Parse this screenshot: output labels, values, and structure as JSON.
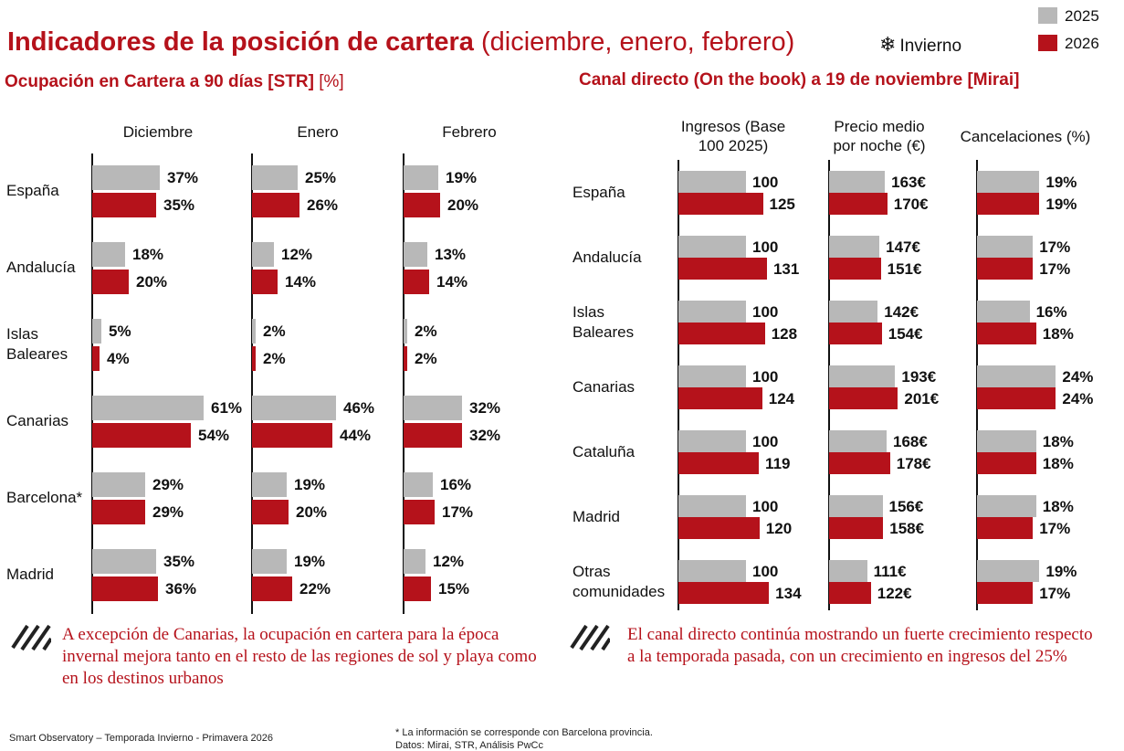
{
  "header": {
    "title_main": "Indicadores de la posición de cartera",
    "title_sub": "(diciembre, enero, febrero)",
    "season_label": "Invierno",
    "legend": [
      {
        "label": "2025",
        "color": "#b8b8b8"
      },
      {
        "label": "2026",
        "color": "#b5121b"
      }
    ]
  },
  "left": {
    "title": "Ocupación en Cartera a 90 días [STR]",
    "unit": "[%]",
    "months": [
      "Diciembre",
      "Enero",
      "Febrero"
    ],
    "rows": [
      {
        "label_lines": [
          "España"
        ]
      },
      {
        "label_lines": [
          "Andalucía"
        ]
      },
      {
        "label_lines": [
          "Islas",
          "Baleares"
        ]
      },
      {
        "label_lines": [
          "Canarias"
        ]
      },
      {
        "label_lines": [
          "Barcelona*"
        ]
      },
      {
        "label_lines": [
          "Madrid"
        ]
      }
    ],
    "note": "A excepción de Canarias, la ocupación en cartera para la época invernal mejora tanto en el resto de las regiones de sol y playa como en los destinos urbanos"
  },
  "right": {
    "title": "Canal directo (On the book) a 19 de noviembre [Mirai]",
    "columns": [
      {
        "header_lines": [
          "Ingresos (Base",
          "100 2025)"
        ]
      },
      {
        "header_lines": [
          "Precio medio",
          "por noche (€)"
        ]
      },
      {
        "header_lines": [
          "Cancelaciones (%)"
        ]
      }
    ],
    "rows": [
      {
        "label_lines": [
          "España"
        ]
      },
      {
        "label_lines": [
          "Andalucía"
        ]
      },
      {
        "label_lines": [
          "Islas",
          "Baleares"
        ]
      },
      {
        "label_lines": [
          "Canarias"
        ]
      },
      {
        "label_lines": [
          "Cataluña"
        ]
      },
      {
        "label_lines": [
          "Madrid"
        ]
      },
      {
        "label_lines": [
          "Otras",
          "comunidades"
        ]
      }
    ],
    "note": "El canal directo continúa mostrando un fuerte crecimiento respecto a la temporada pasada, con un crecimiento en ingresos del 25%"
  },
  "footer": {
    "left": "Smart Observatory – Temporada Invierno - Primavera 2026",
    "note_line1": "* La información se corresponde con Barcelona provincia.",
    "note_line2": "Datos: Mirai, STR, Análisis PwCc"
  },
  "chart_data": [
    {
      "type": "bar",
      "orientation": "horizontal",
      "title": "Ocupación en Cartera a 90 días [STR] [%] — Diciembre",
      "categories": [
        "España",
        "Andalucía",
        "Islas Baleares",
        "Canarias",
        "Barcelona*",
        "Madrid"
      ],
      "series": [
        {
          "name": "2025",
          "values": [
            37,
            18,
            5,
            61,
            29,
            35
          ],
          "labels": [
            "37%",
            "18%",
            "5%",
            "61%",
            "29%",
            "35%"
          ]
        },
        {
          "name": "2026",
          "values": [
            35,
            20,
            4,
            54,
            29,
            36
          ],
          "labels": [
            "35%",
            "20%",
            "4%",
            "54%",
            "29%",
            "36%"
          ]
        }
      ],
      "xlim": [
        0,
        100
      ]
    },
    {
      "type": "bar",
      "orientation": "horizontal",
      "title": "Ocupación en Cartera a 90 días [STR] [%] — Enero",
      "categories": [
        "España",
        "Andalucía",
        "Islas Baleares",
        "Canarias",
        "Barcelona*",
        "Madrid"
      ],
      "series": [
        {
          "name": "2025",
          "values": [
            25,
            12,
            2,
            46,
            19,
            19
          ],
          "labels": [
            "25%",
            "12%",
            "2%",
            "46%",
            "19%",
            "19%"
          ]
        },
        {
          "name": "2026",
          "values": [
            26,
            14,
            2,
            44,
            20,
            22
          ],
          "labels": [
            "26%",
            "14%",
            "2%",
            "44%",
            "20%",
            "22%"
          ]
        }
      ],
      "xlim": [
        0,
        100
      ]
    },
    {
      "type": "bar",
      "orientation": "horizontal",
      "title": "Ocupación en Cartera a 90 días [STR] [%] — Febrero",
      "categories": [
        "España",
        "Andalucía",
        "Islas Baleares",
        "Canarias",
        "Barcelona*",
        "Madrid"
      ],
      "series": [
        {
          "name": "2025",
          "values": [
            19,
            13,
            2,
            32,
            16,
            12
          ],
          "labels": [
            "19%",
            "13%",
            "2%",
            "32%",
            "16%",
            "12%"
          ]
        },
        {
          "name": "2026",
          "values": [
            20,
            14,
            2,
            32,
            17,
            15
          ],
          "labels": [
            "20%",
            "14%",
            "2%",
            "32%",
            "17%",
            "15%"
          ]
        }
      ],
      "xlim": [
        0,
        100
      ]
    },
    {
      "type": "bar",
      "orientation": "horizontal",
      "title": "Ingresos (Base 100 2025)",
      "categories": [
        "España",
        "Andalucía",
        "Islas Baleares",
        "Canarias",
        "Cataluña",
        "Madrid",
        "Otras comunidades"
      ],
      "series": [
        {
          "name": "2025",
          "values": [
            100,
            100,
            100,
            100,
            100,
            100,
            100
          ],
          "labels": [
            "100",
            "100",
            "100",
            "100",
            "100",
            "100",
            "100"
          ]
        },
        {
          "name": "2026",
          "values": [
            125,
            131,
            128,
            124,
            119,
            120,
            134
          ],
          "labels": [
            "125",
            "131",
            "128",
            "124",
            "119",
            "120",
            "134"
          ]
        }
      ],
      "xlim": [
        0,
        175
      ]
    },
    {
      "type": "bar",
      "orientation": "horizontal",
      "title": "Precio medio por noche (€)",
      "categories": [
        "España",
        "Andalucía",
        "Islas Baleares",
        "Canarias",
        "Cataluña",
        "Madrid",
        "Otras comunidades"
      ],
      "series": [
        {
          "name": "2025",
          "values": [
            163,
            147,
            142,
            193,
            168,
            156,
            111
          ],
          "labels": [
            "163€",
            "147€",
            "142€",
            "193€",
            "168€",
            "156€",
            "111€"
          ]
        },
        {
          "name": "2026",
          "values": [
            170,
            151,
            154,
            201,
            178,
            158,
            122
          ],
          "labels": [
            "170€",
            "151€",
            "154€",
            "201€",
            "178€",
            "158€",
            "122€"
          ]
        }
      ],
      "xlim": [
        0,
        280
      ]
    },
    {
      "type": "bar",
      "orientation": "horizontal",
      "title": "Cancelaciones (%)",
      "categories": [
        "España",
        "Andalucía",
        "Islas Baleares",
        "Canarias",
        "Cataluña",
        "Madrid",
        "Otras comunidades"
      ],
      "series": [
        {
          "name": "2025",
          "values": [
            19,
            17,
            16,
            24,
            18,
            18,
            19
          ],
          "labels": [
            "19%",
            "17%",
            "16%",
            "24%",
            "18%",
            "18%",
            "19%"
          ]
        },
        {
          "name": "2026",
          "values": [
            19,
            17,
            18,
            24,
            18,
            17,
            17
          ],
          "labels": [
            "19%",
            "17%",
            "18%",
            "24%",
            "18%",
            "17%",
            "17%"
          ]
        }
      ],
      "xlim": [
        0,
        31
      ]
    }
  ]
}
